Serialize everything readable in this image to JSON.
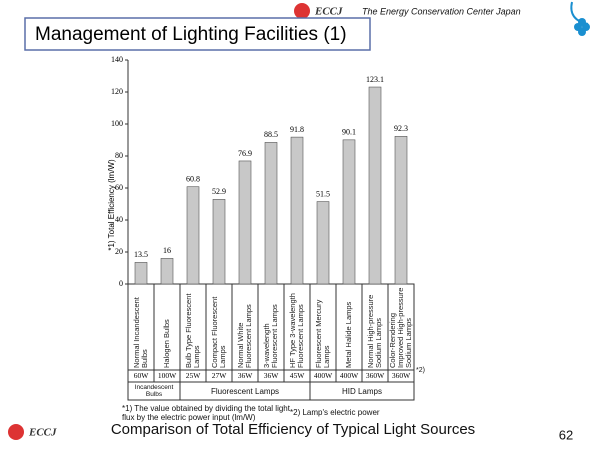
{
  "header": {
    "org": "The Energy Conservation Center Japan",
    "logo": "ECCJ",
    "title": "Management of Lighting Facilities (1)"
  },
  "chart_data": {
    "type": "bar",
    "y_label": "*1) Total Efficiency (lm/W)",
    "categories": [
      "Normal Incandescent Bulbs",
      "Halogen Bulbs",
      "Bulb Type Fluorescent Lamps",
      "Compact Fluorescent Lamps",
      "Normal White Fluorescent Lamps",
      "3-wavelength Fluorescent Lamps",
      "HF Type 3-wavelength Fluorescent Lamps",
      "Fluorescent Mercury Lamps",
      "Metal Halide Lamps",
      "Normal High-pressure Sodium Lamps",
      "Color-Rendering Improved High-pressure Sodium Lamps"
    ],
    "values": [
      13.5,
      16,
      60.8,
      52.9,
      76.9,
      88.5,
      91.8,
      51.5,
      90.1,
      123.1,
      92.3
    ],
    "wattages": [
      "60W",
      "100W",
      "25W",
      "27W",
      "36W",
      "36W",
      "45W",
      "400W",
      "400W",
      "360W",
      "360W"
    ],
    "groups": [
      {
        "label": "Incandescent Bulbs",
        "count": 2
      },
      {
        "label": "Fluorescent Lamps",
        "count": 5
      },
      {
        "label": "HID Lamps",
        "count": 4
      }
    ],
    "color": "#c8c8c8",
    "ylim": [
      0,
      140
    ],
    "yticks": [
      0,
      20,
      40,
      60,
      80,
      100,
      120,
      140
    ],
    "wattage_note": "*2)",
    "note1": "*1) The value obtained by dividing the total light flux by the electric power input (lm/W)",
    "note2": "*2) Lamp's electric power"
  },
  "footer": {
    "caption": "Comparison of Total Efficiency of Typical Light Sources",
    "page": "62",
    "logo": "ECCJ"
  }
}
